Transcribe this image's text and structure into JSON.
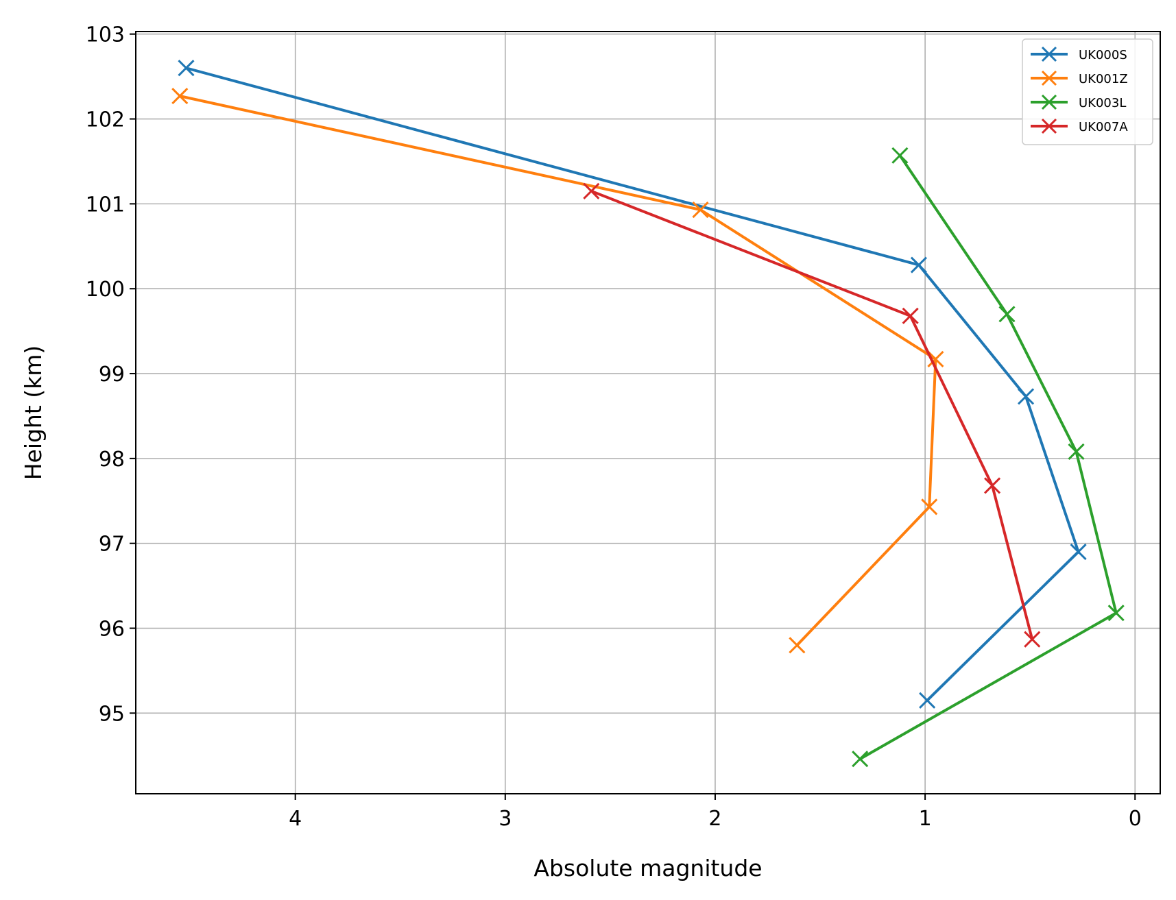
{
  "chart_data": {
    "type": "line",
    "title": "",
    "xlabel": "Absolute magnitude",
    "ylabel": "Height (km)",
    "x_inverted": true,
    "xlim": [
      4.76,
      -0.12
    ],
    "ylim": [
      94.05,
      103.03
    ],
    "xticks": [
      4,
      3,
      2,
      1,
      0
    ],
    "yticks": [
      95,
      96,
      97,
      98,
      99,
      100,
      101,
      102,
      103
    ],
    "grid": true,
    "legend_position": "top-right",
    "marker": "x",
    "series": [
      {
        "name": "UK000S",
        "color": "#1f77b4",
        "points": [
          [
            4.52,
            102.6
          ],
          [
            1.03,
            100.28
          ],
          [
            0.52,
            98.73
          ],
          [
            0.27,
            96.9
          ],
          [
            0.99,
            95.15
          ]
        ]
      },
      {
        "name": "UK001Z",
        "color": "#ff7f0e",
        "points": [
          [
            4.55,
            102.27
          ],
          [
            2.07,
            100.93
          ],
          [
            0.95,
            99.17
          ],
          [
            0.98,
            97.43
          ],
          [
            1.61,
            95.8
          ]
        ]
      },
      {
        "name": "UK003L",
        "color": "#2ca02c",
        "points": [
          [
            1.12,
            101.57
          ],
          [
            0.61,
            99.7
          ],
          [
            0.28,
            98.08
          ],
          [
            0.09,
            96.18
          ],
          [
            1.31,
            94.46
          ]
        ]
      },
      {
        "name": "UK007A",
        "color": "#d62728",
        "points": [
          [
            2.59,
            101.15
          ],
          [
            1.07,
            99.68
          ],
          [
            0.68,
            97.68
          ],
          [
            0.49,
            95.87
          ]
        ]
      }
    ]
  }
}
